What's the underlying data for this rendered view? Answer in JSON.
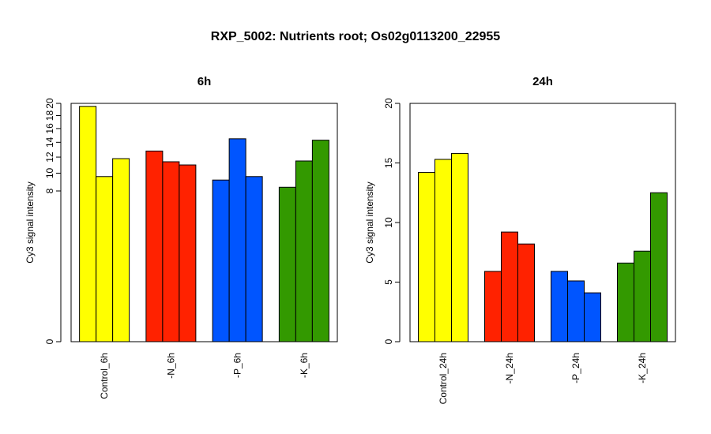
{
  "title": "RXP_5002: Nutrients root; Os02g0113200_22955",
  "colors": {
    "control": "#ffff00",
    "N": "#ff2200",
    "P": "#0055ff",
    "K": "#339900"
  },
  "chart_data": [
    {
      "type": "bar",
      "title": "6h",
      "ylabel": "Cy3 signal intensity",
      "xlabel": "",
      "ylim": [
        0,
        20
      ],
      "y_ticks": [
        "0",
        "8",
        "10",
        "12",
        "14",
        "16",
        "18",
        "20"
      ],
      "y_tick_values": [
        0,
        8,
        10,
        12,
        14,
        16,
        18,
        20
      ],
      "y_scale": "sqrt",
      "groups": [
        {
          "label": "Control_6h",
          "color_key": "control",
          "values": [
            19.5,
            9.6,
            11.8
          ]
        },
        {
          "label": "-N_6h",
          "color_key": "N",
          "values": [
            12.8,
            11.4,
            11.0
          ]
        },
        {
          "label": "-P_6h",
          "color_key": "P",
          "values": [
            9.2,
            14.5,
            9.6
          ]
        },
        {
          "label": "-K_6h",
          "color_key": "K",
          "values": [
            8.4,
            11.5,
            14.3
          ]
        }
      ]
    },
    {
      "type": "bar",
      "title": "24h",
      "ylabel": "Cy3 signal intensity",
      "xlabel": "",
      "ylim": [
        0,
        20
      ],
      "y_ticks": [
        "0",
        "5",
        "10",
        "15",
        "20"
      ],
      "y_tick_values": [
        0,
        5,
        10,
        15,
        20
      ],
      "y_scale": "linear",
      "groups": [
        {
          "label": "Control_24h",
          "color_key": "control",
          "values": [
            14.2,
            15.3,
            15.8
          ]
        },
        {
          "label": "-N_24h",
          "color_key": "N",
          "values": [
            5.9,
            9.2,
            8.2
          ]
        },
        {
          "label": "-P_24h",
          "color_key": "P",
          "values": [
            5.9,
            5.1,
            4.1
          ]
        },
        {
          "label": "-K_24h",
          "color_key": "K",
          "values": [
            6.6,
            7.6,
            12.5
          ]
        }
      ]
    }
  ]
}
